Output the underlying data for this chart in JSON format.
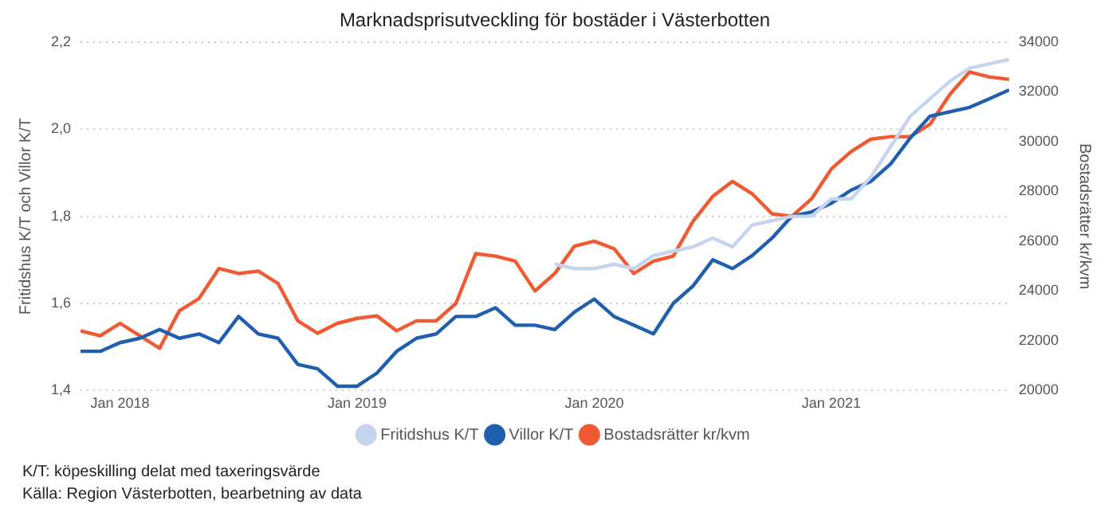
{
  "chart_data": {
    "type": "line",
    "title": "Marknadsprisutveckling för bostäder i Västerbotten",
    "ylabel": "Fritidshus K/T och Villor K/T",
    "y2label": "Bostadsrätter kr/kvm",
    "x": [
      "2017-11",
      "2017-12",
      "2018-01",
      "2018-02",
      "2018-03",
      "2018-04",
      "2018-05",
      "2018-06",
      "2018-07",
      "2018-08",
      "2018-09",
      "2018-10",
      "2018-11",
      "2018-12",
      "2019-01",
      "2019-02",
      "2019-03",
      "2019-04",
      "2019-05",
      "2019-06",
      "2019-07",
      "2019-08",
      "2019-09",
      "2019-10",
      "2019-11",
      "2019-12",
      "2020-01",
      "2020-02",
      "2020-03",
      "2020-04",
      "2020-05",
      "2020-06",
      "2020-07",
      "2020-08",
      "2020-09",
      "2020-10",
      "2020-11",
      "2020-12",
      "2021-01",
      "2021-02",
      "2021-03",
      "2021-04",
      "2021-05",
      "2021-06",
      "2021-07",
      "2021-08",
      "2021-09",
      "2021-10"
    ],
    "series": [
      {
        "name": "Fritidshus K/T",
        "color": "#c5d5f0",
        "axis": "y",
        "values": [
          null,
          null,
          null,
          null,
          null,
          null,
          null,
          null,
          null,
          null,
          null,
          null,
          null,
          null,
          null,
          null,
          null,
          null,
          null,
          null,
          null,
          null,
          null,
          null,
          1.69,
          1.68,
          1.68,
          1.69,
          1.68,
          1.71,
          1.72,
          1.73,
          1.75,
          1.73,
          1.78,
          1.79,
          1.8,
          1.8,
          1.84,
          1.84,
          1.89,
          1.96,
          2.03,
          2.07,
          2.11,
          2.14,
          2.15,
          2.16
        ]
      },
      {
        "name": "Villor K/T",
        "color": "#1f5fad",
        "axis": "y",
        "values": [
          1.49,
          1.49,
          1.51,
          1.52,
          1.54,
          1.52,
          1.53,
          1.51,
          1.57,
          1.53,
          1.52,
          1.46,
          1.45,
          1.41,
          1.41,
          1.44,
          1.49,
          1.52,
          1.53,
          1.57,
          1.57,
          1.59,
          1.55,
          1.55,
          1.54,
          1.58,
          1.61,
          1.57,
          1.55,
          1.53,
          1.6,
          1.64,
          1.7,
          1.68,
          1.71,
          1.75,
          1.8,
          1.81,
          1.83,
          1.86,
          1.88,
          1.92,
          1.98,
          2.03,
          2.04,
          2.05,
          2.07,
          2.09
        ]
      },
      {
        "name": "Bostadsrätter kr/kvm",
        "color": "#f05a32",
        "axis": "y2",
        "values": [
          22400,
          22200,
          22700,
          22200,
          21700,
          23200,
          23700,
          24900,
          24700,
          24800,
          24300,
          22800,
          22300,
          22700,
          22900,
          23000,
          22400,
          22800,
          22800,
          23500,
          25500,
          25400,
          25200,
          24000,
          24700,
          25800,
          26000,
          25700,
          24700,
          25200,
          25400,
          26800,
          27800,
          28400,
          27900,
          27100,
          27000,
          27700,
          28900,
          29600,
          30100,
          30200,
          30200,
          30700,
          31900,
          32800,
          32600,
          32500
        ]
      }
    ],
    "xlim": [
      "2017-11",
      "2021-10"
    ],
    "xticks": [
      {
        "value": "2018-01",
        "label": "Jan 2018"
      },
      {
        "value": "2019-01",
        "label": "Jan 2019"
      },
      {
        "value": "2020-01",
        "label": "Jan 2020"
      },
      {
        "value": "2021-01",
        "label": "Jan 2021"
      }
    ],
    "ylim": [
      1.4,
      2.2
    ],
    "yticks": [
      {
        "value": 1.4,
        "label": "1,4"
      },
      {
        "value": 1.6,
        "label": "1,6"
      },
      {
        "value": 1.8,
        "label": "1,8"
      },
      {
        "value": 2.0,
        "label": "2,0"
      },
      {
        "value": 2.2,
        "label": "2,2"
      }
    ],
    "y2lim": [
      20000,
      34000
    ],
    "y2ticks": [
      20000,
      22000,
      24000,
      26000,
      28000,
      30000,
      32000,
      34000
    ],
    "grid": "y",
    "legend": "bottom",
    "marker": "none",
    "line_style": "solid",
    "annotations": [
      "K/T: köpeskilling delat med taxeringsvärde",
      "Källa: Region Västerbotten, bearbetning av data"
    ]
  }
}
